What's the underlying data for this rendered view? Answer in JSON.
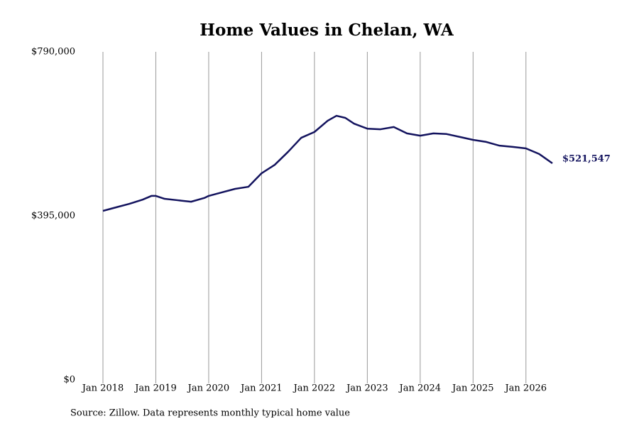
{
  "chart_data": {
    "type": "line",
    "title": "Home Values in Chelan, WA",
    "source": "Source: Zillow. Data represents monthly typical home value",
    "x": [
      "2018-01",
      "2018-04",
      "2018-07",
      "2018-10",
      "2018-12",
      "2019-01",
      "2019-03",
      "2019-06",
      "2019-09",
      "2019-12",
      "2020-01",
      "2020-04",
      "2020-07",
      "2020-10",
      "2021-01",
      "2021-04",
      "2021-07",
      "2021-10",
      "2022-01",
      "2022-04",
      "2022-06",
      "2022-08",
      "2022-10",
      "2023-01",
      "2023-04",
      "2023-07",
      "2023-10",
      "2024-01",
      "2024-04",
      "2024-07",
      "2024-10",
      "2025-01",
      "2025-04",
      "2025-07",
      "2025-10",
      "2026-01",
      "2026-04",
      "2026-07"
    ],
    "values": [
      407000,
      415500,
      424000,
      434000,
      443000,
      443000,
      436000,
      432500,
      429000,
      438000,
      443000,
      451500,
      460000,
      465000,
      497500,
      518000,
      549000,
      583000,
      597000,
      624000,
      636000,
      631000,
      617000,
      605000,
      603500,
      609000,
      593500,
      588000,
      593500,
      592000,
      585000,
      578000,
      573000,
      564000,
      561000,
      557500,
      544000,
      521547
    ],
    "value_labels": [
      null,
      null,
      null,
      null,
      null,
      null,
      null,
      null,
      null,
      null,
      null,
      null,
      null,
      null,
      null,
      null,
      null,
      null,
      null,
      null,
      null,
      null,
      null,
      null,
      null,
      null,
      null,
      null,
      null,
      null,
      null,
      null,
      null,
      null,
      null,
      null,
      null,
      "$521,547"
    ],
    "color": "#13135e",
    "xlim": [
      "2018-01",
      "2026-07"
    ],
    "xticks": [
      {
        "value": "2018-01",
        "label": "Jan 2018"
      },
      {
        "value": "2019-01",
        "label": "Jan 2019"
      },
      {
        "value": "2020-01",
        "label": "Jan 2020"
      },
      {
        "value": "2021-01",
        "label": "Jan 2021"
      },
      {
        "value": "2022-01",
        "label": "Jan 2022"
      },
      {
        "value": "2023-01",
        "label": "Jan 2023"
      },
      {
        "value": "2024-01",
        "label": "Jan 2024"
      },
      {
        "value": "2025-01",
        "label": "Jan 2025"
      },
      {
        "value": "2026-01",
        "label": "Jan 2026"
      }
    ],
    "ylim": [
      0,
      790000
    ],
    "yticks": [
      {
        "value": 0,
        "label": "$0"
      },
      {
        "value": 395000,
        "label": "$395,000"
      },
      {
        "value": 790000,
        "label": "$790,000"
      }
    ],
    "grid": "x"
  }
}
